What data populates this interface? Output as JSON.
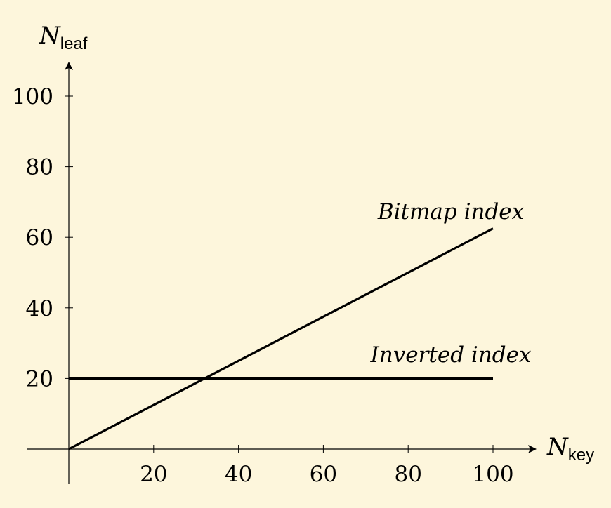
{
  "chart_data": {
    "type": "line",
    "xlabel": {
      "main": "N",
      "sub": "key"
    },
    "ylabel": {
      "main": "N",
      "sub": "leaf"
    },
    "xlim": [
      0,
      100
    ],
    "ylim": [
      0,
      100
    ],
    "xticks": [
      20,
      40,
      60,
      80,
      100
    ],
    "yticks": [
      20,
      40,
      60,
      80,
      100
    ],
    "grid": false,
    "line_color": "#000000",
    "background": "#fdf6dc",
    "series": [
      {
        "name": "Bitmap index",
        "x": [
          0,
          100
        ],
        "y": [
          0,
          62.5
        ]
      },
      {
        "name": "Inverted index",
        "x": [
          0,
          100
        ],
        "y": [
          20,
          20
        ]
      }
    ]
  }
}
